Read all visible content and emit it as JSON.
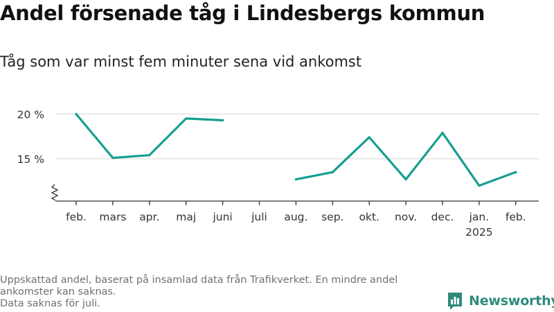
{
  "title": "Andel försenade tåg i Lindesbergs kommun",
  "subtitle": "Tåg som var minst fem minuter sena vid ankomst",
  "footer": {
    "note1": "Uppskattad andel, baserat på insamlad data från Trafikverket. En mindre andel ankomster kan saknas.",
    "note2": "Data saknas för juli."
  },
  "brand": {
    "name": "Newsworthy",
    "icon": "newsworthy-logo-icon",
    "color": "#2e8b7a"
  },
  "chart_data": {
    "type": "line",
    "title": "Andel försenade tåg i Lindesbergs kommun",
    "subtitle": "Tåg som var minst fem minuter sena vid ankomst",
    "categories": [
      "feb.",
      "mars",
      "apr.",
      "maj",
      "juni",
      "juli",
      "aug.",
      "sep.",
      "okt.",
      "nov.",
      "dec.",
      "jan.",
      "feb."
    ],
    "category_sublabels": [
      "",
      "",
      "",
      "",
      "",
      "",
      "",
      "",
      "",
      "",
      "",
      "2025",
      ""
    ],
    "series": [
      {
        "values": [
          20.0,
          15.1,
          15.4,
          19.5,
          19.3,
          null,
          12.7,
          13.5,
          17.4,
          12.7,
          17.9,
          12.0,
          13.5
        ],
        "color": "#159e92"
      }
    ],
    "y_ticks": [
      {
        "value": 15,
        "label": "15 %"
      },
      {
        "value": 20,
        "label": "20 %"
      }
    ],
    "ylim": [
      10,
      20.7
    ],
    "y_axis_break": true,
    "grid": true,
    "grid_color": "#dddddd"
  }
}
